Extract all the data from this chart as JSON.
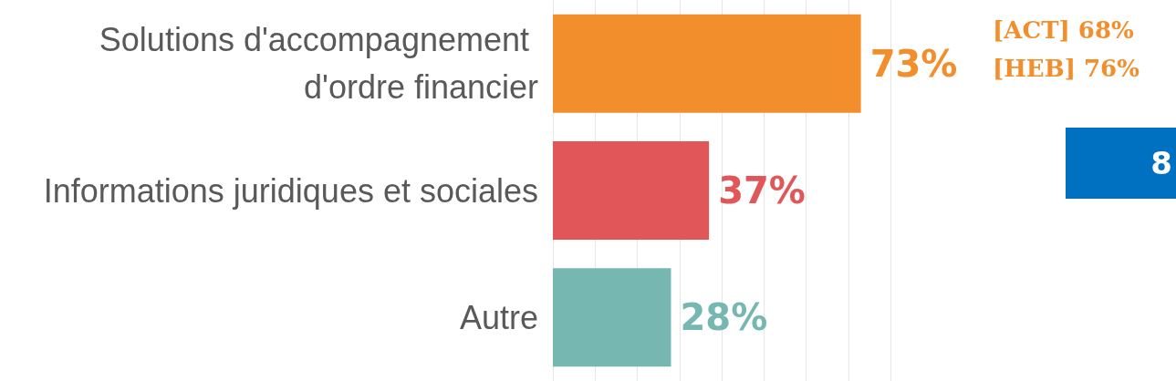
{
  "chart_data": {
    "type": "bar",
    "orientation": "horizontal",
    "categories": [
      "Solutions d'accompagnement d'ordre financier",
      "Informations juridiques et sociales",
      "Autre"
    ],
    "values": [
      73,
      37,
      28
    ],
    "value_labels": [
      "73%",
      "37%",
      "28%"
    ],
    "colors": [
      "#f28e2b",
      "#e15759",
      "#76b7b2"
    ],
    "grid": "x",
    "tick_labels": "y",
    "annotations": [
      "[ACT] 68%",
      "[HEB] 76%",
      "8"
    ]
  }
}
